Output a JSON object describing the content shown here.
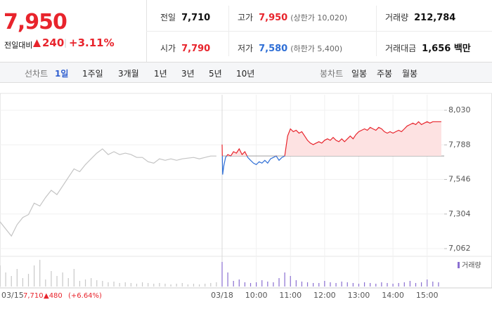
{
  "quote": {
    "price": "7,950",
    "change_label": "전일대비",
    "change": "240",
    "rate": "+3.11%"
  },
  "stats": [
    [
      {
        "label": "전일",
        "value": "7,710",
        "tone": "flat"
      },
      {
        "label": "고가",
        "value": "7,950",
        "note": "(상한가 10,020)",
        "tone": "up"
      },
      {
        "label": "거래량",
        "value": "212,784",
        "tone": "flat"
      }
    ],
    [
      {
        "label": "시가",
        "value": "7,790",
        "tone": "up"
      },
      {
        "label": "저가",
        "value": "7,580",
        "note": "(하한가 5,400)",
        "tone": "down"
      },
      {
        "label": "거래대금",
        "value": "1,656 백만",
        "tone": "flat"
      }
    ]
  ],
  "tabs": {
    "line_label": "선차트",
    "periods": [
      "1일",
      "1주일",
      "3개월",
      "1년",
      "3년",
      "5년",
      "10년"
    ],
    "active": 0,
    "candle_label": "봉차트",
    "candles": [
      "일봉",
      "주봉",
      "월봉"
    ]
  },
  "chart_data": {
    "type": "line",
    "xlim": [
      0,
      780
    ],
    "ylim": [
      7023,
      8089
    ],
    "xticks": [
      {
        "value": 0,
        "label": "03/15"
      },
      {
        "value": 390,
        "label": "03/18"
      },
      {
        "value": 450,
        "label": "10:00"
      },
      {
        "value": 510,
        "label": "11:00"
      },
      {
        "value": 570,
        "label": "12:00"
      },
      {
        "value": 630,
        "label": "13:00"
      },
      {
        "value": 690,
        "label": "14:00"
      },
      {
        "value": 750,
        "label": "15:00"
      }
    ],
    "yticks": [
      {
        "value": 8030,
        "label": "8,030"
      },
      {
        "value": 7788,
        "label": "7,788"
      },
      {
        "value": 7546,
        "label": "7,546"
      },
      {
        "value": 7304,
        "label": "7,304"
      },
      {
        "value": 7062,
        "label": "7,062"
      }
    ],
    "grid": true,
    "baseline": 7710,
    "series": [
      {
        "color": "#c4c4c4",
        "x": [
          0,
          10,
          20,
          30,
          40,
          50,
          60,
          70,
          80,
          90,
          100,
          110,
          120,
          130,
          140,
          150,
          160,
          170,
          180,
          190,
          200,
          210,
          220,
          230,
          240,
          250,
          260,
          270,
          280,
          290,
          300,
          310,
          320,
          330,
          340,
          350,
          360,
          370,
          380
        ],
        "values": [
          7250,
          7200,
          7150,
          7230,
          7280,
          7300,
          7380,
          7360,
          7420,
          7470,
          7440,
          7500,
          7560,
          7620,
          7600,
          7650,
          7690,
          7730,
          7760,
          7720,
          7740,
          7720,
          7730,
          7720,
          7700,
          7700,
          7670,
          7660,
          7690,
          7680,
          7690,
          7680,
          7690,
          7695,
          7700,
          7690,
          7700,
          7710,
          7710
        ]
      },
      {
        "color": "#e8242c",
        "down_color": "#2f6fd6",
        "fill": "#fde2e2",
        "x": [
          390,
          391,
          393,
          396,
          400,
          405,
          410,
          415,
          420,
          425,
          430,
          435,
          440,
          445,
          450,
          455,
          460,
          465,
          470,
          475,
          480,
          485,
          490,
          495,
          500,
          505,
          510,
          515,
          520,
          525,
          530,
          535,
          540,
          545,
          550,
          555,
          560,
          565,
          570,
          575,
          580,
          585,
          590,
          595,
          600,
          605,
          610,
          615,
          620,
          625,
          630,
          635,
          640,
          645,
          650,
          655,
          660,
          665,
          670,
          675,
          680,
          685,
          690,
          695,
          700,
          705,
          710,
          715,
          720,
          725,
          730,
          735,
          740,
          745,
          750,
          755,
          760,
          765,
          770,
          775
        ],
        "values": [
          7790,
          7580,
          7640,
          7700,
          7720,
          7710,
          7740,
          7730,
          7760,
          7720,
          7740,
          7700,
          7680,
          7660,
          7650,
          7670,
          7660,
          7680,
          7660,
          7690,
          7700,
          7710,
          7680,
          7700,
          7710,
          7850,
          7900,
          7880,
          7890,
          7870,
          7880,
          7850,
          7820,
          7800,
          7790,
          7800,
          7810,
          7800,
          7820,
          7830,
          7820,
          7840,
          7820,
          7810,
          7830,
          7810,
          7830,
          7850,
          7830,
          7860,
          7880,
          7890,
          7900,
          7890,
          7910,
          7900,
          7890,
          7910,
          7900,
          7880,
          7870,
          7880,
          7870,
          7880,
          7890,
          7880,
          7900,
          7920,
          7930,
          7940,
          7930,
          7950,
          7930,
          7940,
          7950,
          7940,
          7950,
          7950,
          7950,
          7950
        ]
      }
    ],
    "volume": {
      "name": "거래량",
      "color": "#8a6fd1",
      "series": [
        {
          "color": "#c8c8c8",
          "x": [
            0,
            10,
            20,
            30,
            40,
            50,
            60,
            70,
            80,
            90,
            100,
            110,
            120,
            130,
            140,
            150,
            160,
            170,
            180,
            190,
            200,
            210,
            220,
            230,
            240,
            250,
            260,
            270,
            280,
            290,
            300,
            310,
            320,
            330,
            340,
            350,
            360,
            370,
            380
          ],
          "values": [
            30,
            20,
            15,
            25,
            12,
            18,
            30,
            38,
            10,
            22,
            15,
            20,
            12,
            25,
            8,
            10,
            12,
            9,
            8,
            6,
            7,
            5,
            6,
            5,
            4,
            6,
            5,
            4,
            5,
            4,
            3,
            4,
            5,
            3,
            4,
            3,
            4,
            5,
            6
          ]
        },
        {
          "color": "#8a6fd1",
          "x": [
            390,
            400,
            410,
            420,
            430,
            440,
            450,
            460,
            470,
            480,
            490,
            500,
            510,
            520,
            530,
            540,
            550,
            560,
            570,
            580,
            590,
            600,
            610,
            620,
            630,
            640,
            650,
            660,
            670,
            680,
            690,
            700,
            710,
            720,
            730,
            740,
            750,
            760,
            770
          ],
          "values": [
            35,
            20,
            8,
            10,
            6,
            5,
            6,
            9,
            7,
            6,
            12,
            20,
            15,
            9,
            7,
            6,
            5,
            5,
            8,
            6,
            5,
            7,
            6,
            5,
            4,
            6,
            5,
            4,
            6,
            5,
            4,
            5,
            6,
            8,
            5,
            6,
            10,
            7,
            6
          ]
        }
      ]
    },
    "annotation": {
      "close": "7,710",
      "change": "▲480",
      "rate": "(+6.64%)"
    }
  }
}
